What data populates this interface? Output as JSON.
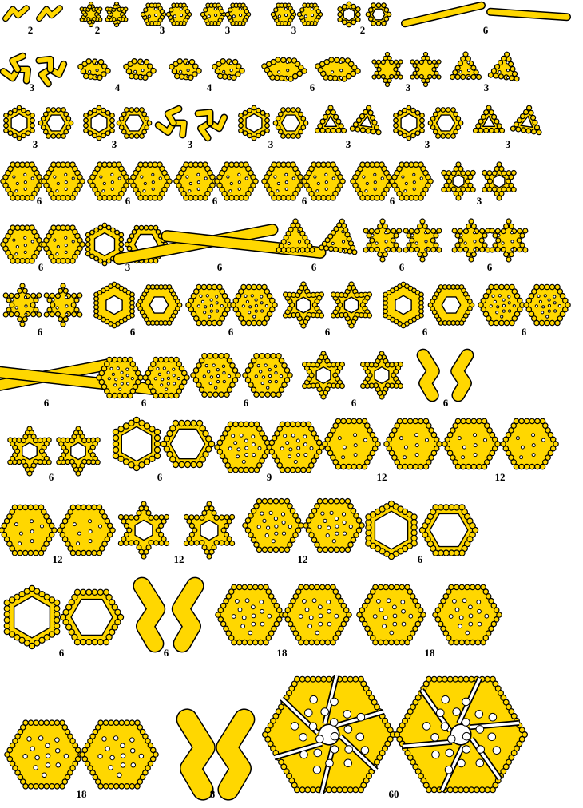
{
  "colors": {
    "fill": "#ffd700",
    "stroke": "#000000",
    "background": "#ffffff"
  },
  "figures": [
    {
      "label": "2",
      "shape": "zigzag"
    },
    {
      "label": "2",
      "shape": "star-small"
    },
    {
      "label": "3",
      "shape": "hex-solid-small"
    },
    {
      "label": "3",
      "shape": "hex-solid-small"
    },
    {
      "label": "3",
      "shape": "hex-solid-small"
    },
    {
      "label": "2",
      "shape": "ring-small"
    },
    {
      "label": "6",
      "shape": "rod"
    },
    {
      "label": "3",
      "shape": "swirl"
    },
    {
      "label": "4",
      "shape": "cluster"
    },
    {
      "label": "4",
      "shape": "cluster"
    },
    {
      "label": "6",
      "shape": "cluster-wide"
    },
    {
      "label": "3",
      "shape": "star-small"
    },
    {
      "label": "3",
      "shape": "triangle-solid"
    },
    {
      "label": "3",
      "shape": "ring"
    },
    {
      "label": "3",
      "shape": "ring"
    },
    {
      "label": "3",
      "shape": "pinwheel"
    },
    {
      "label": "3",
      "shape": "ring"
    },
    {
      "label": "3",
      "shape": "triangle-ring"
    },
    {
      "label": "3",
      "shape": "ring"
    },
    {
      "label": "3",
      "shape": "triangle-ring"
    },
    {
      "label": "6",
      "shape": "hex-solid"
    },
    {
      "label": "6",
      "shape": "hex-solid"
    },
    {
      "label": "6",
      "shape": "hex-solid"
    },
    {
      "label": "6",
      "shape": "hex-solid"
    },
    {
      "label": "6",
      "shape": "hex-solid"
    },
    {
      "label": "3",
      "shape": "star-ring"
    },
    {
      "label": "6",
      "shape": "hex-solid"
    },
    {
      "label": "3",
      "shape": "hex-ring"
    },
    {
      "label": "6",
      "shape": "rod-thick"
    },
    {
      "label": "6",
      "shape": "triangle-solid"
    },
    {
      "label": "6",
      "shape": "star-solid"
    },
    {
      "label": "6",
      "shape": "star-solid"
    },
    {
      "label": "6",
      "shape": "star-solid"
    },
    {
      "label": "6",
      "shape": "hex-ring-thick"
    },
    {
      "label": "6",
      "shape": "hex-holey"
    },
    {
      "label": "6",
      "shape": "star-ring"
    },
    {
      "label": "6",
      "shape": "hex-ring-thick"
    },
    {
      "label": "6",
      "shape": "hex-holey"
    },
    {
      "label": "6",
      "shape": "rod-thick"
    },
    {
      "label": "6",
      "shape": "hex-holey"
    },
    {
      "label": "6",
      "shape": "hex-holey"
    },
    {
      "label": "6",
      "shape": "star-ring"
    },
    {
      "label": "6",
      "shape": "column"
    },
    {
      "label": "6",
      "shape": "star-ring"
    },
    {
      "label": "6",
      "shape": "ring-jagged"
    },
    {
      "label": "9",
      "shape": "hex-holey"
    },
    {
      "label": "12",
      "shape": "hex-solid"
    },
    {
      "label": "12",
      "shape": "hex-solid"
    },
    {
      "label": "12",
      "shape": "hex-solid"
    },
    {
      "label": "12",
      "shape": "star-ring"
    },
    {
      "label": "12",
      "shape": "hex-holey"
    },
    {
      "label": "6",
      "shape": "ring-jagged"
    },
    {
      "label": "6",
      "shape": "ring-jagged"
    },
    {
      "label": "6",
      "shape": "column"
    },
    {
      "label": "18",
      "shape": "hex-holey"
    },
    {
      "label": "18",
      "shape": "hex-holey"
    },
    {
      "label": "18",
      "shape": "hex-holey"
    },
    {
      "label": "8",
      "shape": "column"
    },
    {
      "label": "60",
      "shape": "hex-large"
    }
  ]
}
